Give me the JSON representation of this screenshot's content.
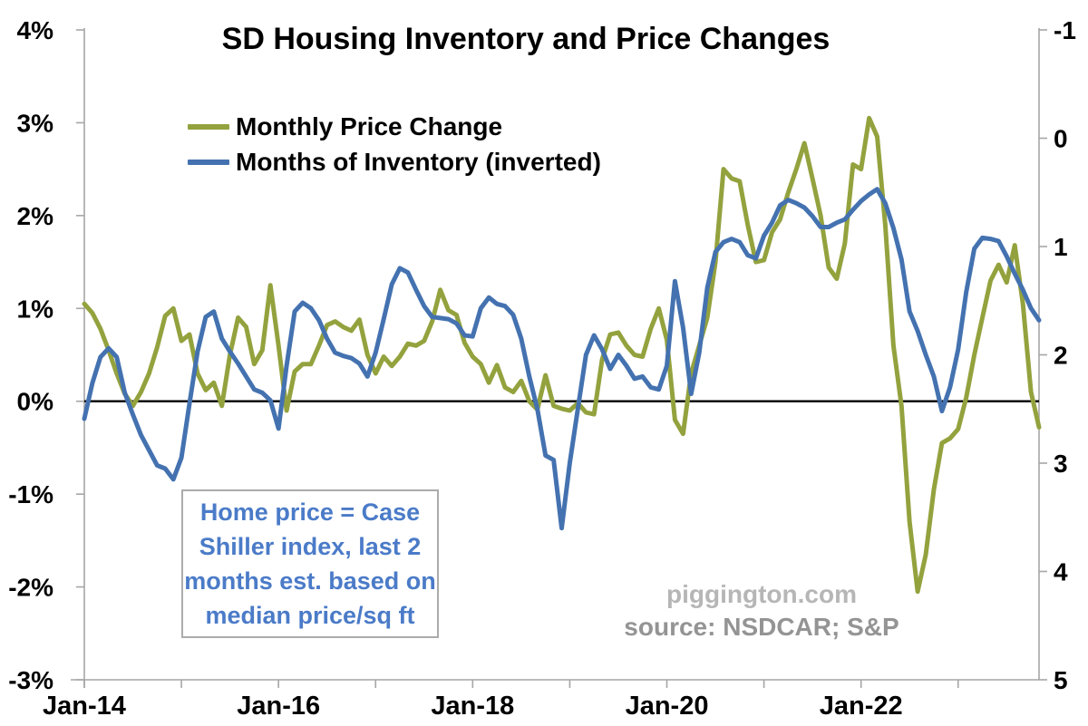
{
  "title": "SD Housing Inventory and Price Changes",
  "legend": [
    {
      "label": "Monthly Price Change",
      "color": "#94A23E",
      "swatch_icon": "line-swatch"
    },
    {
      "label": "Months of Inventory (inverted)",
      "color": "#4472B0",
      "swatch_icon": "line-swatch"
    }
  ],
  "annotation_box": {
    "lines": [
      "Home price = Case",
      "Shiller index, last 2",
      "months est. based on",
      "median price/sq ft"
    ],
    "text_color": "#4B7BC8",
    "border_color": "#ABABAB"
  },
  "watermark": {
    "line1": "piggington.com",
    "line2": "source: NSDCAR; S&P"
  },
  "chart_data": {
    "type": "line",
    "title": "SD Housing Inventory and Price Changes",
    "x_unit": "month",
    "x_start": "Jan-2014",
    "x_end": "Nov-2023",
    "grid": false,
    "legend_position": "top-left-inside",
    "x_axis": {
      "tick_every_months": 12,
      "labeled_ticks": [
        {
          "month_index": 0,
          "label": "Jan-14"
        },
        {
          "month_index": 24,
          "label": "Jan-16"
        },
        {
          "month_index": 48,
          "label": "Jan-18"
        },
        {
          "month_index": 72,
          "label": "Jan-20"
        },
        {
          "month_index": 96,
          "label": "Jan-22"
        }
      ]
    },
    "left_axis": {
      "title": "Monthly price change",
      "min": -3,
      "max": 4,
      "tick_labels": [
        "4%",
        "3%",
        "2%",
        "1%",
        "0%",
        "-1%",
        "-2%",
        "-3%"
      ],
      "tick_values": [
        4,
        3,
        2,
        1,
        0,
        -1,
        -2,
        -3
      ]
    },
    "right_axis": {
      "title": "Months of inventory (inverted)",
      "min": -1,
      "max": 5,
      "inverted": true,
      "tick_labels": [
        "-1",
        "0",
        "1",
        "2",
        "3",
        "4",
        "5"
      ],
      "tick_values": [
        -1,
        0,
        1,
        2,
        3,
        4,
        5
      ]
    },
    "zero_line_value": 0,
    "zero_line_color": "#000000",
    "axis_color": "#A6A6A6",
    "series": [
      {
        "name": "Monthly Price Change",
        "axis": "left",
        "color": "#94A23E",
        "unit": "%",
        "values": [
          1.05,
          0.95,
          0.78,
          0.55,
          0.3,
          0.08,
          -0.05,
          0.1,
          0.3,
          0.58,
          0.92,
          1.0,
          0.65,
          0.72,
          0.3,
          0.12,
          0.2,
          -0.05,
          0.5,
          0.9,
          0.8,
          0.4,
          0.55,
          1.25,
          0.6,
          -0.1,
          0.32,
          0.4,
          0.4,
          0.6,
          0.82,
          0.86,
          0.8,
          0.76,
          0.88,
          0.5,
          0.3,
          0.48,
          0.38,
          0.48,
          0.62,
          0.6,
          0.65,
          0.86,
          1.2,
          0.98,
          0.93,
          0.63,
          0.48,
          0.4,
          0.2,
          0.39,
          0.15,
          0.1,
          0.22,
          0.0,
          -0.09,
          0.28,
          -0.05,
          -0.08,
          -0.1,
          -0.02,
          -0.12,
          -0.14,
          0.45,
          0.72,
          0.74,
          0.6,
          0.5,
          0.48,
          0.78,
          1.0,
          0.66,
          -0.2,
          -0.35,
          0.3,
          0.6,
          0.9,
          1.5,
          2.5,
          2.4,
          2.37,
          1.9,
          1.5,
          1.52,
          1.82,
          1.96,
          2.25,
          2.5,
          2.78,
          2.4,
          2.0,
          1.44,
          1.32,
          1.7,
          2.55,
          2.5,
          3.05,
          2.85,
          1.9,
          0.6,
          -0.05,
          -1.3,
          -2.05,
          -1.65,
          -0.95,
          -0.45,
          -0.4,
          -0.3,
          0.04,
          0.5,
          0.9,
          1.3,
          1.47,
          1.28,
          1.68,
          1.05,
          0.1,
          -0.28
        ]
      },
      {
        "name": "Months of Inventory (inverted)",
        "axis": "right",
        "color": "#4472B0",
        "unit": "months",
        "values": [
          2.59,
          2.26,
          2.02,
          1.94,
          2.02,
          2.35,
          2.55,
          2.74,
          2.88,
          3.02,
          3.05,
          3.15,
          2.95,
          2.45,
          1.97,
          1.65,
          1.6,
          1.85,
          1.97,
          2.08,
          2.2,
          2.32,
          2.35,
          2.42,
          2.68,
          2.1,
          1.6,
          1.52,
          1.57,
          1.68,
          1.85,
          1.98,
          2.01,
          2.03,
          2.08,
          2.2,
          1.98,
          1.67,
          1.35,
          1.2,
          1.24,
          1.4,
          1.55,
          1.65,
          1.66,
          1.67,
          1.71,
          1.82,
          1.83,
          1.57,
          1.47,
          1.53,
          1.55,
          1.63,
          1.85,
          2.2,
          2.5,
          2.93,
          2.97,
          3.6,
          3.0,
          2.5,
          2.0,
          1.82,
          1.95,
          2.13,
          2.0,
          2.1,
          2.22,
          2.2,
          2.3,
          2.32,
          2.1,
          1.32,
          1.75,
          2.36,
          1.98,
          1.38,
          1.05,
          0.96,
          0.93,
          0.96,
          1.08,
          1.11,
          0.9,
          0.78,
          0.62,
          0.57,
          0.6,
          0.64,
          0.72,
          0.82,
          0.82,
          0.78,
          0.75,
          0.66,
          0.58,
          0.52,
          0.47,
          0.6,
          0.83,
          1.12,
          1.6,
          1.78,
          2.0,
          2.2,
          2.52,
          2.3,
          1.95,
          1.42,
          1.02,
          0.92,
          0.93,
          0.95,
          1.09,
          1.25,
          1.4,
          1.57,
          1.68
        ]
      }
    ]
  }
}
